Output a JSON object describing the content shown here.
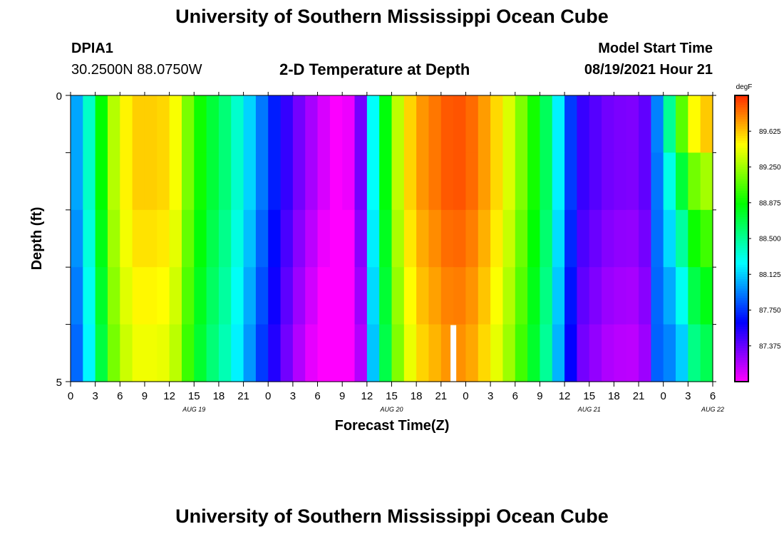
{
  "header": {
    "title_top": "University of Southern Mississippi Ocean Cube",
    "station_id": "DPIA1",
    "coordinates": "30.2500N  88.0750W",
    "plot_name": "2-D Temperature at Depth",
    "model_start_label": "Model Start Time",
    "model_start_value": "08/19/2021 Hour 21",
    "title_bottom": "University of Southern Mississippi Ocean Cube"
  },
  "chart_data": {
    "type": "heatmap",
    "title": "2-D Temperature at Depth",
    "xlabel": "Forecast Time(Z)",
    "ylabel": "Depth (ft)",
    "x_tick_labels": [
      "0",
      "3",
      "6",
      "9",
      "12",
      "15",
      "18",
      "21",
      "0",
      "3",
      "6",
      "9",
      "12",
      "15",
      "18",
      "21",
      "0",
      "3",
      "6",
      "9",
      "12",
      "15",
      "18",
      "21",
      "0",
      "3",
      "6"
    ],
    "date_labels": [
      {
        "text": "AUG 19",
        "at_hour": 15
      },
      {
        "text": "AUG 20",
        "at_hour": 39
      },
      {
        "text": "AUG 21",
        "at_hour": 63
      },
      {
        "text": "AUG 22",
        "at_hour": 78
      }
    ],
    "x_range_hours": [
      0,
      78
    ],
    "y_range_ft": [
      0,
      5
    ],
    "y_tick_labels": [
      "0",
      "5"
    ],
    "depth_levels": 5,
    "colorbar": {
      "unit": "degF",
      "min": 87.0,
      "max": 90.0,
      "labels": [
        "89.625",
        "89.250",
        "88.875",
        "88.500",
        "88.125",
        "87.750",
        "87.375"
      ]
    },
    "temperature_profile_surface": [
      [
        0,
        87.95
      ],
      [
        1,
        88.05
      ],
      [
        2,
        88.3
      ],
      [
        3,
        88.6
      ],
      [
        4,
        88.95
      ],
      [
        5,
        89.25
      ],
      [
        6,
        89.45
      ],
      [
        8,
        89.6
      ],
      [
        11,
        89.6
      ],
      [
        13,
        89.45
      ],
      [
        14,
        89.2
      ],
      [
        16,
        88.85
      ],
      [
        19,
        88.55
      ],
      [
        21,
        88.25
      ],
      [
        23,
        87.95
      ],
      [
        25,
        87.65
      ],
      [
        27,
        87.4
      ],
      [
        30,
        87.15
      ],
      [
        32,
        87.0
      ],
      [
        34,
        87.05
      ],
      [
        35,
        87.25
      ],
      [
        36,
        87.6
      ],
      [
        36.5,
        88.1
      ],
      [
        37,
        88.4
      ],
      [
        38,
        88.75
      ],
      [
        39,
        89.1
      ],
      [
        40,
        89.4
      ],
      [
        42,
        89.7
      ],
      [
        44,
        89.8
      ],
      [
        46,
        89.9
      ],
      [
        48,
        89.9
      ],
      [
        50,
        89.75
      ],
      [
        52,
        89.55
      ],
      [
        54,
        89.3
      ],
      [
        56,
        88.95
      ],
      [
        58,
        88.6
      ],
      [
        59,
        88.3
      ],
      [
        60,
        87.95
      ],
      [
        61,
        87.7
      ],
      [
        62,
        87.5
      ],
      [
        65,
        87.35
      ],
      [
        68,
        87.3
      ],
      [
        70,
        87.4
      ],
      [
        70.5,
        87.6
      ],
      [
        71,
        87.85
      ],
      [
        72,
        88.2
      ],
      [
        73,
        88.6
      ],
      [
        74,
        89.0
      ],
      [
        75,
        89.3
      ],
      [
        76,
        89.55
      ],
      [
        78,
        89.65
      ]
    ],
    "depth_offsets_degF": [
      0.0,
      0.0,
      -0.05,
      -0.1,
      -0.15
    ],
    "late_depth_offsets_degF": [
      0.0,
      -0.35,
      -0.6,
      -0.8,
      -0.95
    ],
    "masked_cell": {
      "hour": 46.5,
      "depth_index": 4
    }
  }
}
